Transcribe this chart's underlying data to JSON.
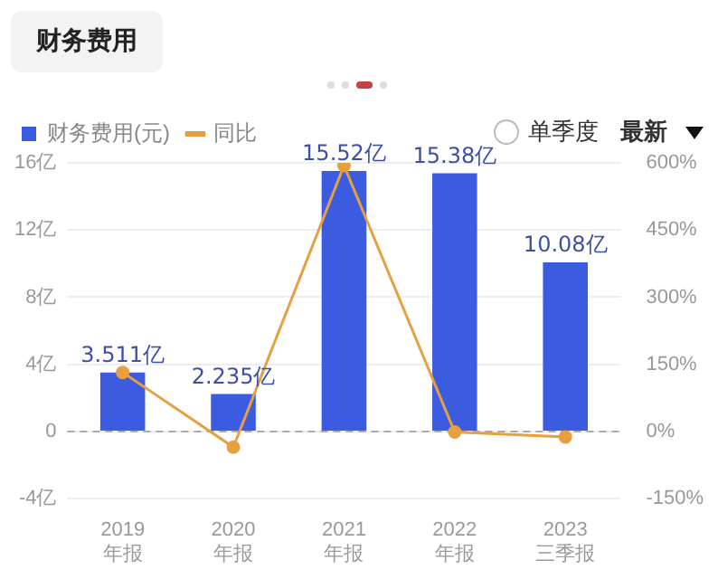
{
  "chart_data": {
    "type": "bar",
    "title": "财务费用",
    "categories": [
      "2019\n年报",
      "2020\n年报",
      "2021\n年报",
      "2022\n年报",
      "2023\n三季报"
    ],
    "series": [
      {
        "name": "财务费用(元)",
        "color": "#3b5be0",
        "values": [
          3.511,
          2.235,
          15.52,
          15.38,
          10.08
        ],
        "value_labels": [
          "3.511亿",
          "2.235亿",
          "15.52亿",
          "15.38亿",
          "10.08亿"
        ]
      },
      {
        "name": "同比",
        "type": "line",
        "axis": "y2",
        "color": "#e6a040",
        "values": [
          132,
          -35,
          594,
          -1,
          -12
        ]
      }
    ],
    "ylim": [
      -4,
      16
    ],
    "yticks": [
      {
        "value": -4,
        "label": "-4亿"
      },
      0,
      {
        "value": 4,
        "label": "4亿"
      },
      {
        "value": 8,
        "label": "8亿"
      },
      {
        "value": 12,
        "label": "12亿"
      },
      {
        "value": 16,
        "label": "16亿"
      }
    ],
    "y2lim": [
      -150,
      600
    ],
    "y2ticks": [
      {
        "value": -150,
        "label": "-150%"
      },
      {
        "value": 0,
        "label": "0%"
      },
      {
        "value": 150,
        "label": "150%"
      },
      {
        "value": 300,
        "label": "300%"
      },
      {
        "value": 450,
        "label": "450%"
      },
      {
        "value": 600,
        "label": "600%"
      }
    ],
    "ref_lines": [
      {
        "axis": "y",
        "value": 0,
        "color": "#aaaaaa",
        "line_style": "dashed"
      }
    ],
    "grid": "y",
    "legend": "top left",
    "marker": "circle",
    "annotations": [
      "单季度",
      "最新"
    ]
  }
}
